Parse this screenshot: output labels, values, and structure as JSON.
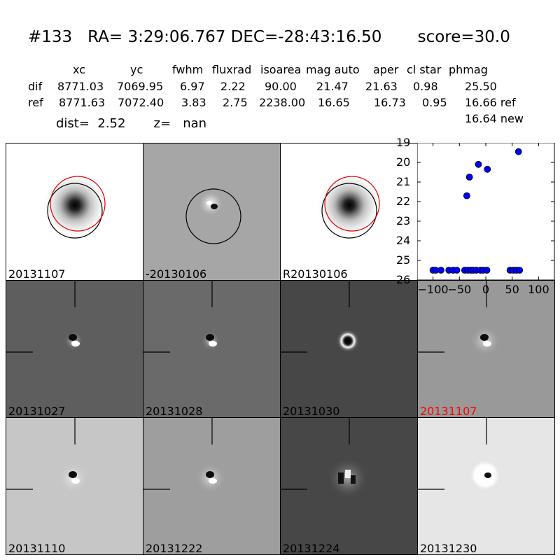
{
  "header": {
    "title": "#133   RA= 3:29:06.767 DEC=-28:43:16.50       score=30.0",
    "columns": [
      "xc",
      "yc",
      "fwhm",
      "fluxrad",
      "isoarea",
      "mag auto",
      "aper",
      "cl star",
      "phmag"
    ],
    "rows": [
      {
        "name": "dif",
        "values": [
          "8771.03",
          "7069.95",
          "6.97",
          "2.22",
          "90.00",
          "21.47",
          "21.63",
          "0.98",
          "25.50"
        ]
      },
      {
        "name": "ref",
        "values": [
          "8771.63",
          "7072.40",
          "3.83",
          "2.75",
          "2238.00",
          "16.65",
          "16.73",
          "0.95",
          "16.66 ref"
        ]
      }
    ],
    "phmag_new": "16.64 new",
    "dist_line": "dist=  2.52       z=   nan"
  },
  "panels": [
    {
      "label": "20131107",
      "bg": "#ffffff",
      "kind": "ref-circles",
      "label_color": "#000000"
    },
    {
      "label": "-20130106",
      "bg": "#a6a6a6",
      "kind": "diff-circle",
      "label_color": "#000000"
    },
    {
      "label": "R20130106",
      "bg": "#ffffff",
      "kind": "ref-circles",
      "label_color": "#000000"
    },
    {
      "label": "20131027",
      "bg": "#5e5e5e",
      "kind": "dipole",
      "label_color": "#000000"
    },
    {
      "label": "20131028",
      "bg": "#6a6a6a",
      "kind": "dipole",
      "label_color": "#000000"
    },
    {
      "label": "20131030",
      "bg": "#474747",
      "kind": "ring",
      "label_color": "#000000"
    },
    {
      "label": "20131107",
      "bg": "#999999",
      "kind": "dipole-wide",
      "label_color": "#ff0000"
    },
    {
      "label": "20131110",
      "bg": "#c6c6c6",
      "kind": "dipole-wide",
      "label_color": "#000000"
    },
    {
      "label": "20131222",
      "bg": "#9e9e9e",
      "kind": "dipole-wide",
      "label_color": "#000000"
    },
    {
      "label": "20131224",
      "bg": "#474747",
      "kind": "noisy",
      "label_color": "#000000"
    },
    {
      "label": "20131230",
      "bg": "#e6e6e6",
      "kind": "bright",
      "label_color": "#000000"
    }
  ],
  "chart_data": {
    "type": "scatter",
    "xlim": [
      -130,
      130
    ],
    "ylim": [
      26,
      19
    ],
    "xticks": [
      -100,
      -50,
      0,
      50,
      100
    ],
    "xtick_labels": [
      "−100",
      "−50",
      "0",
      "50",
      "100"
    ],
    "yticks": [
      19,
      20,
      21,
      22,
      23,
      24,
      25,
      26
    ],
    "points": [
      {
        "x": -100,
        "y": 25.5
      },
      {
        "x": -95,
        "y": 25.5
      },
      {
        "x": -85,
        "y": 25.5
      },
      {
        "x": -70,
        "y": 25.5
      },
      {
        "x": -62,
        "y": 25.5
      },
      {
        "x": -55,
        "y": 25.5
      },
      {
        "x": -40,
        "y": 25.5
      },
      {
        "x": -34,
        "y": 25.5
      },
      {
        "x": -28,
        "y": 25.5
      },
      {
        "x": -24,
        "y": 25.5
      },
      {
        "x": -18,
        "y": 25.5
      },
      {
        "x": -10,
        "y": 25.5
      },
      {
        "x": -5,
        "y": 25.5
      },
      {
        "x": 2,
        "y": 25.5
      },
      {
        "x": 46,
        "y": 25.5
      },
      {
        "x": 52,
        "y": 25.5
      },
      {
        "x": 58,
        "y": 25.5
      },
      {
        "x": 64,
        "y": 25.5
      },
      {
        "x": -36,
        "y": 21.7
      },
      {
        "x": -31,
        "y": 20.75
      },
      {
        "x": -14,
        "y": 20.1
      },
      {
        "x": 3,
        "y": 20.35
      },
      {
        "x": 62,
        "y": 19.45
      }
    ],
    "marker_color": "#0000ff"
  }
}
